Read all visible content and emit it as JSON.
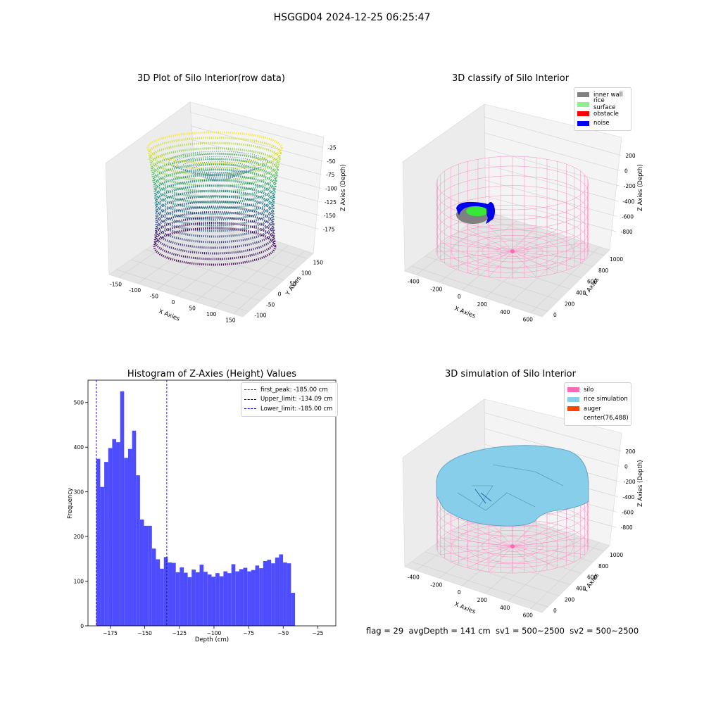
{
  "figure": {
    "suptitle": "HSGGD04 2024-12-25 06:25:47",
    "footer": "flag = 29  avgDepth = 141 cm  sv1 = 500~2500  sv2 = 500~2500"
  },
  "panels": {
    "raw": {
      "title": "3D Plot of Silo Interior(row data)",
      "xlabel": "X Axies",
      "ylabel": "Y Axies",
      "zlabel": "Z Axies (Depth)",
      "xticks": [
        "-150",
        "-100",
        "-50",
        "0",
        "50",
        "100",
        "150"
      ],
      "yticks": [
        "-100",
        "-50",
        "0",
        "50",
        "100",
        "150"
      ],
      "zticks": [
        "-25",
        "-50",
        "-75",
        "-100",
        "-125",
        "-150",
        "-175"
      ]
    },
    "classify": {
      "title": "3D classify of Silo Interior",
      "xlabel": "X Axies",
      "ylabel": "Y Axies",
      "zlabel": "Z Axies (Depth)",
      "xticks": [
        "-400",
        "-200",
        "0",
        "200",
        "400",
        "600"
      ],
      "yticks": [
        "0",
        "200",
        "400",
        "600",
        "800",
        "1000"
      ],
      "zticks": [
        "200",
        "0",
        "-200",
        "-400",
        "-600",
        "-800"
      ],
      "legend": [
        {
          "label": "inner wall",
          "color": "#808080"
        },
        {
          "label": "rice surface",
          "color": "#90ee90"
        },
        {
          "label": "obstacle",
          "color": "#ff0000"
        },
        {
          "label": "noise",
          "color": "#0000ff"
        }
      ]
    },
    "simulation": {
      "title": "3D simulation of Silo Interior",
      "xlabel": "X Axies",
      "ylabel": "Y Axies",
      "zlabel": "Z Axies (Depth)",
      "xticks": [
        "-400",
        "-200",
        "0",
        "200",
        "400",
        "600"
      ],
      "yticks": [
        "0",
        "200",
        "400",
        "600",
        "800",
        "1000"
      ],
      "zticks": [
        "200",
        "0",
        "-200",
        "-400",
        "-600",
        "-800"
      ],
      "legend": [
        {
          "label": "silo",
          "color": "#ff69b4"
        },
        {
          "label": "rice simulation",
          "color": "#87ceeb"
        },
        {
          "label": "auger",
          "color": "#ff4500"
        },
        {
          "label": "center(76,488)",
          "color": ""
        }
      ]
    }
  },
  "chart_data": {
    "type": "bar",
    "title": "Histogram of Z-Axies (Height) Values",
    "xlabel": "Depth (cm)",
    "ylabel": "Frequency",
    "xlim": [
      -191,
      -12
    ],
    "ylim": [
      0,
      550
    ],
    "xticks": [
      -175,
      -150,
      -125,
      -100,
      -75,
      -50,
      -25
    ],
    "yticks": [
      0,
      100,
      200,
      300,
      400,
      500
    ],
    "bin_start": -185.0,
    "bin_width": 2.87,
    "values": [
      374,
      311,
      367,
      398,
      418,
      411,
      525,
      376,
      396,
      437,
      337,
      238,
      224,
      224,
      173,
      149,
      128,
      154,
      142,
      141,
      120,
      131,
      119,
      109,
      126,
      120,
      137,
      121,
      115,
      110,
      118,
      111,
      122,
      118,
      138,
      122,
      127,
      130,
      122,
      125,
      135,
      129,
      145,
      148,
      140,
      153,
      160,
      142,
      140,
      74
    ],
    "vlines": [
      {
        "label": "first_peak: -185.00 cm",
        "x": -185.0,
        "color": "#ff0000"
      },
      {
        "label": "Upper_limit: -134.09 cm",
        "x": -134.09,
        "color": "#0000aa"
      },
      {
        "label": "Lower_limit: -185.00 cm",
        "x": -185.0,
        "color": "#0000ff"
      }
    ],
    "bar_color": "#4d4dff"
  }
}
